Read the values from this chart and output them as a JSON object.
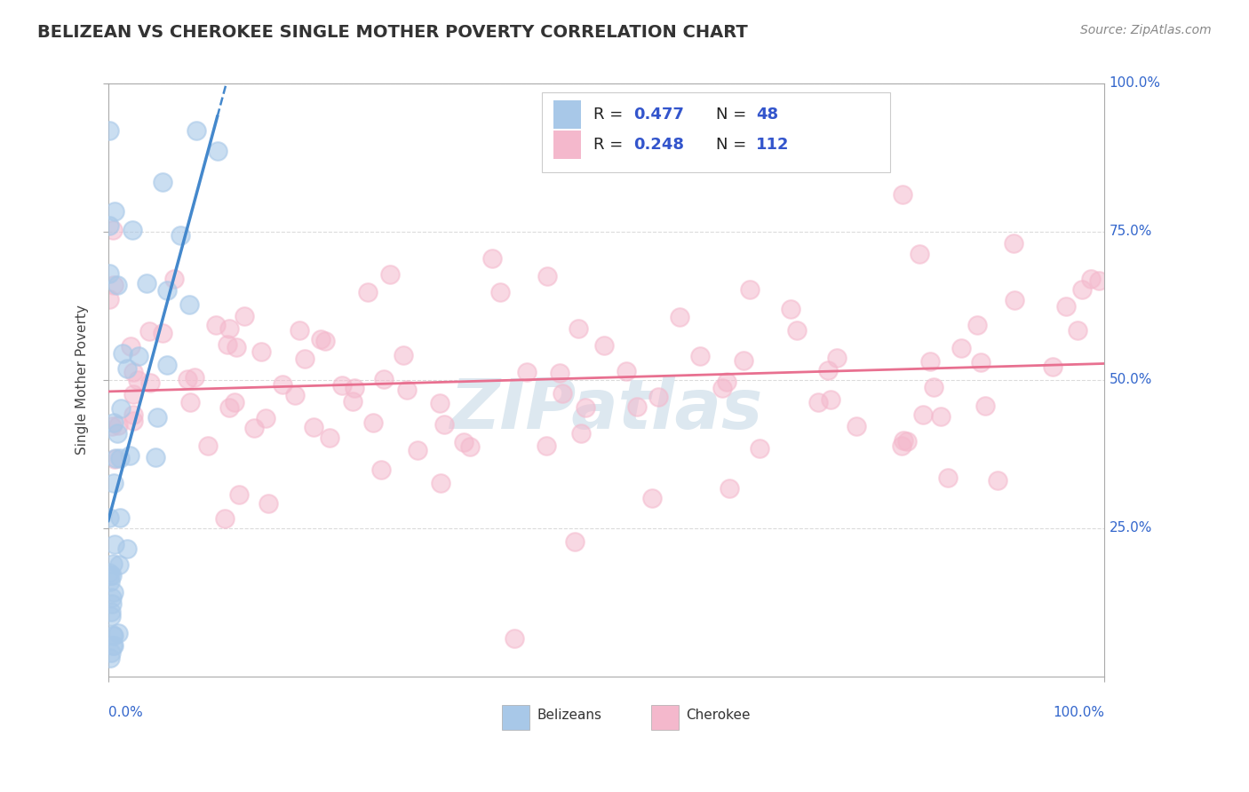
{
  "title": "BELIZEAN VS CHEROKEE SINGLE MOTHER POVERTY CORRELATION CHART",
  "source": "Source: ZipAtlas.com",
  "ylabel": "Single Mother Poverty",
  "r_belizean": 0.477,
  "n_belizean": 48,
  "r_cherokee": 0.248,
  "n_cherokee": 112,
  "belizean_scatter_color": "#a8c8e8",
  "cherokee_scatter_color": "#f4b8cc",
  "belizean_line_color": "#4488cc",
  "cherokee_line_color": "#e87090",
  "r_value_color": "#3355cc",
  "n_value_color": "#3355cc",
  "watermark_color": "#dde8f0",
  "background_color": "#ffffff",
  "grid_color": "#cccccc",
  "title_color": "#333333",
  "axis_label_color": "#3366cc"
}
